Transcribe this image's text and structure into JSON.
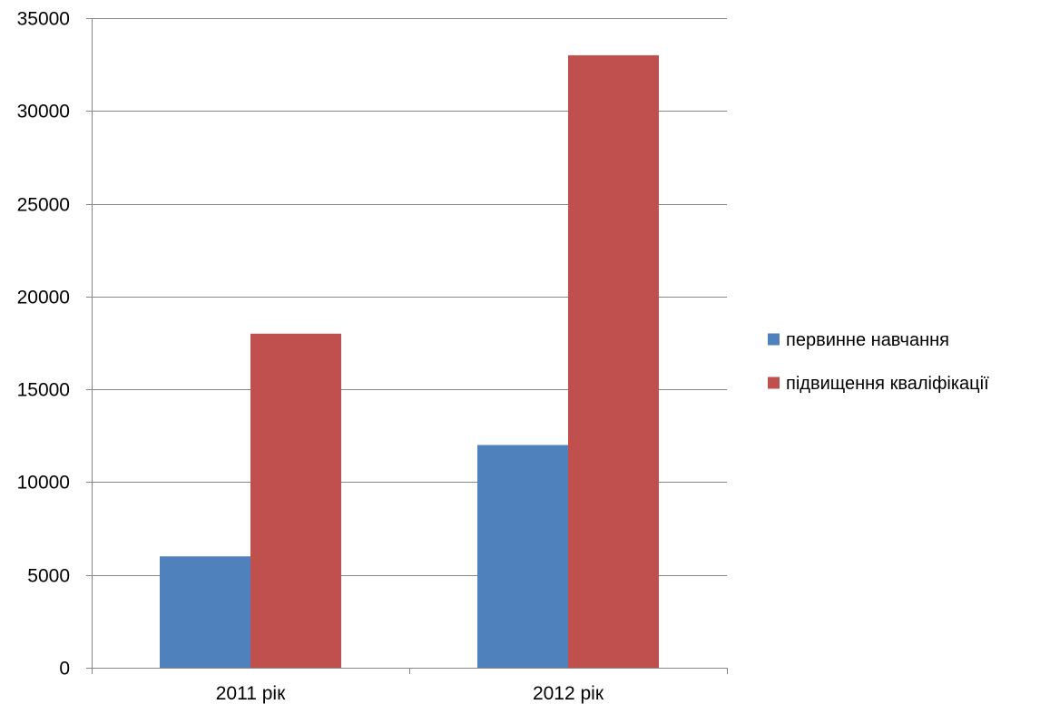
{
  "chart_data": {
    "type": "bar",
    "categories": [
      "2011 рік",
      "2012 рік"
    ],
    "series": [
      {
        "name": "первинне навчання",
        "values": [
          6000,
          12000
        ],
        "color": "#4f81bd"
      },
      {
        "name": "підвищення кваліфікації",
        "values": [
          18000,
          33000
        ],
        "color": "#c0504d"
      }
    ],
    "ylim": [
      0,
      35000
    ],
    "yticks": [
      0,
      5000,
      10000,
      15000,
      20000,
      25000,
      30000,
      35000
    ],
    "grid": true,
    "legend_position": "right",
    "title": "",
    "xlabel": "",
    "ylabel": ""
  }
}
